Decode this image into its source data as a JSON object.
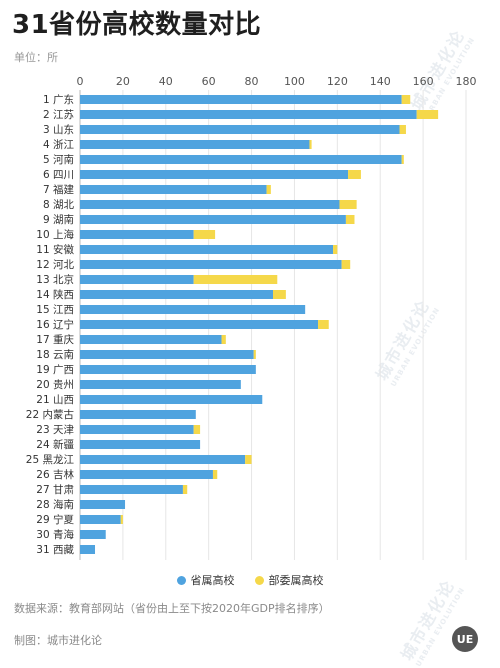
{
  "title": "31省份高校数量对比",
  "unit": "单位：所",
  "source": "数据来源：教育部网站（省份由上至下按2020年GDP排名排序）",
  "maker": "制图：城市进化论",
  "brand": "UE",
  "watermark": {
    "cn": "城市进化论",
    "en": "URBAN EVOLUTION"
  },
  "colors": {
    "provincial": "#4fa3df",
    "ministry": "#f5d84a",
    "grid": "#e6e6e6"
  },
  "chart_data": {
    "type": "bar",
    "orientation": "horizontal",
    "stacked": true,
    "xlim": [
      0,
      180
    ],
    "xticks": [
      0,
      20,
      40,
      60,
      80,
      100,
      120,
      140,
      160,
      180
    ],
    "grid": true,
    "legend_position": "bottom",
    "categories": [
      "1 广东",
      "2 江苏",
      "3 山东",
      "4 浙江",
      "5 河南",
      "6 四川",
      "7 福建",
      "8 湖北",
      "9 湖南",
      "10 上海",
      "11 安徽",
      "12 河北",
      "13 北京",
      "14 陕西",
      "15 江西",
      "16 辽宁",
      "17 重庆",
      "18 云南",
      "19 广西",
      "20 贵州",
      "21 山西",
      "22 内蒙古",
      "23 天津",
      "24 新疆",
      "25 黑龙江",
      "26 吉林",
      "27 甘肃",
      "28 海南",
      "29 宁夏",
      "30 青海",
      "31 西藏"
    ],
    "series": [
      {
        "name": "省属高校",
        "values": [
          150,
          157,
          149,
          107,
          150,
          125,
          87,
          121,
          124,
          53,
          118,
          122,
          53,
          90,
          105,
          111,
          66,
          81,
          82,
          75,
          85,
          54,
          53,
          56,
          77,
          62,
          48,
          21,
          19,
          12,
          7
        ]
      },
      {
        "name": "部委属高校",
        "values": [
          4,
          10,
          3,
          1,
          1,
          6,
          2,
          8,
          4,
          10,
          2,
          4,
          39,
          6,
          0,
          5,
          2,
          1,
          0,
          0,
          0,
          0,
          3,
          0,
          3,
          2,
          2,
          0,
          1,
          0,
          0
        ]
      }
    ]
  }
}
